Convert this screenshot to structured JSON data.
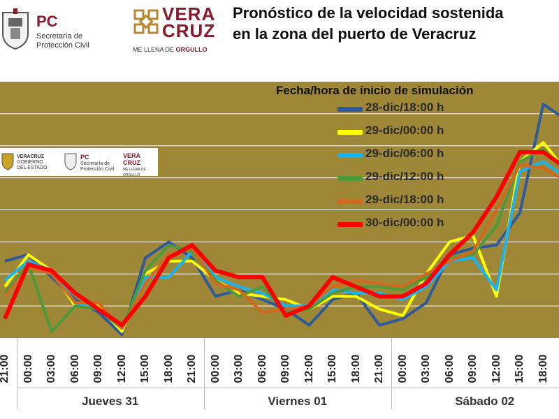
{
  "header": {
    "pc_logo": {
      "abbr": "PC",
      "line1": "Secretaría de",
      "line2": "Protección Civil"
    },
    "veracruz_logo": {
      "word1": "VERA",
      "word2": "CRUZ",
      "slogan": "ME LLENA DE",
      "slogan_bold": "ORGULLO"
    },
    "title_line1": "Pronóstico de la velocidad sostenida",
    "title_line2": "en la zona del puerto de Veracruz"
  },
  "inset_logos": {
    "gov": {
      "line1": "VERACRUZ",
      "line2": "GOBIERNO",
      "line3": "DEL ESTADO"
    },
    "pc": {
      "abbr": "PC",
      "line1": "Secretaría de",
      "line2": "Protección Civil"
    },
    "ver": {
      "word1": "VERA",
      "word2": "CRUZ",
      "slogan": "ME LLENA DE ORGULLO"
    }
  },
  "colors": {
    "plot_bg": "#9e8838",
    "grid": "#ffffff"
  },
  "chart_data": {
    "type": "line",
    "title": "",
    "xlabel": "",
    "ylabel": "",
    "legend_title": "Fecha/hora de inicio de simulación",
    "legend_position": "top-right",
    "grid": true,
    "ylim": [
      0,
      8
    ],
    "x": [
      "21:00",
      "00:00",
      "03:00",
      "06:00",
      "09:00",
      "12:00",
      "15:00",
      "18:00",
      "21:00",
      "00:00",
      "03:00",
      "06:00",
      "09:00",
      "12:00",
      "15:00",
      "18:00",
      "21:00",
      "00:00",
      "03:00",
      "06:00",
      "09:00",
      "12:00",
      "15:00",
      "18:00",
      "21:00"
    ],
    "day_groups": [
      {
        "label": "Jueves 31",
        "start": 1,
        "end": 8
      },
      {
        "label": "Viernes 01",
        "start": 9,
        "end": 16
      },
      {
        "label": "Sábado 02",
        "start": 17,
        "end": 24
      }
    ],
    "series": [
      {
        "name": "28-dic/18:00 h",
        "color": "#2e5a9a",
        "values": [
          2.4,
          2.6,
          1.9,
          1.2,
          0.8,
          0.1,
          2.5,
          3.0,
          2.5,
          1.3,
          1.5,
          1.2,
          0.9,
          0.4,
          1.2,
          1.4,
          0.4,
          0.6,
          1.1,
          2.6,
          2.8,
          2.9,
          3.9,
          7.3,
          6.8
        ]
      },
      {
        "name": "29-dic/00:00 h",
        "color": "#ffff00",
        "values": [
          1.6,
          2.6,
          2.1,
          1.0,
          1.0,
          0.2,
          2.0,
          2.4,
          2.4,
          1.8,
          1.4,
          1.3,
          1.2,
          0.9,
          1.3,
          1.3,
          0.9,
          0.7,
          2.0,
          3.0,
          3.2,
          1.3,
          5.5,
          6.1,
          5.2
        ]
      },
      {
        "name": "29-dic/06:00 h",
        "color": "#19b4f0",
        "values": [
          1.8,
          2.4,
          2.1,
          1.1,
          0.9,
          0.3,
          1.9,
          1.9,
          2.7,
          1.9,
          1.6,
          1.4,
          1.0,
          1.0,
          1.5,
          1.4,
          1.4,
          1.2,
          1.6,
          2.4,
          2.5,
          1.5,
          5.2,
          5.5,
          5.0
        ]
      },
      {
        "name": "29-dic/12:00 h",
        "color": "#4e9a3a",
        "values": [
          1.4,
          2.3,
          0.2,
          1.0,
          0.9,
          0.3,
          2.1,
          2.9,
          2.7,
          1.8,
          1.3,
          1.6,
          0.8,
          0.9,
          1.4,
          1.6,
          1.6,
          1.5,
          1.9,
          2.5,
          2.6,
          3.5,
          5.5,
          5.9,
          5.2
        ]
      },
      {
        "name": "29-dic/18:00 h",
        "color": "#d2691e",
        "values": [
          1.3,
          2.2,
          2.0,
          1.1,
          1.1,
          0.3,
          1.7,
          2.6,
          2.8,
          1.7,
          1.5,
          0.8,
          0.9,
          1.0,
          1.6,
          1.8,
          1.7,
          1.6,
          2.0,
          2.4,
          2.7,
          4.0,
          5.4,
          5.3,
          4.9
        ]
      },
      {
        "name": "30-dic/00:00 h",
        "color": "#ff0000",
        "values": [
          0.6,
          2.3,
          2.1,
          1.4,
          0.9,
          0.4,
          1.3,
          2.5,
          2.9,
          2.1,
          1.9,
          1.9,
          0.7,
          1.0,
          1.9,
          1.6,
          1.3,
          1.3,
          1.7,
          2.6,
          3.3,
          4.4,
          5.8,
          5.8,
          5.3
        ]
      }
    ]
  }
}
